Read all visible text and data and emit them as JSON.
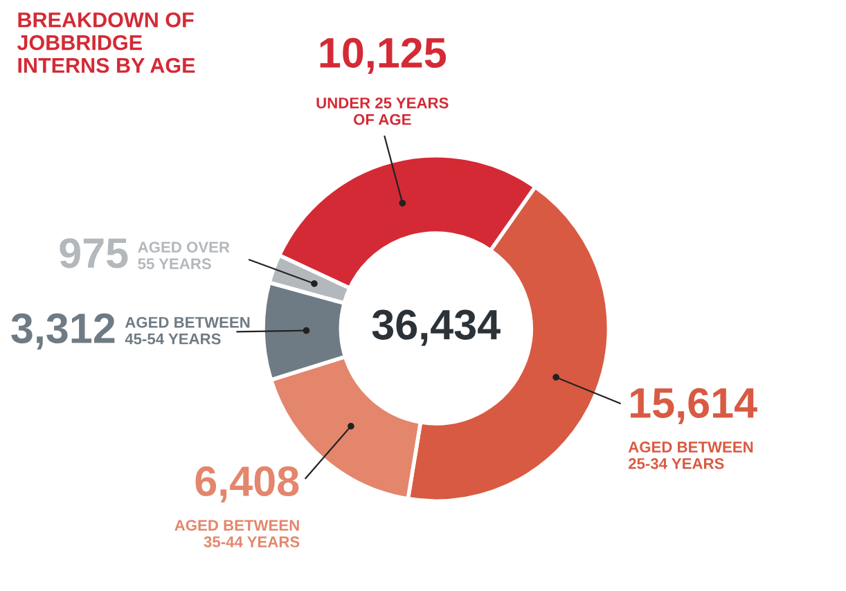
{
  "chart_data": {
    "type": "donut",
    "title": "BREAKDOWN OF\nJOBBRIDGE\nINTERNS BY AGE",
    "categories": [
      "UNDER 25 YEARS\nOF AGE",
      "AGED BETWEEN\n25-34 YEARS",
      "AGED BETWEEN\n35-44 YEARS",
      "AGED BETWEEN\n45-54 YEARS",
      "AGED OVER\n55 YEARS"
    ],
    "values": [
      10125,
      15614,
      6408,
      3312,
      975
    ],
    "value_labels": [
      "10,125",
      "15,614",
      "6,408",
      "3,312",
      "975"
    ],
    "colors": [
      "#d42a35",
      "#d95a42",
      "#e3866c",
      "#6f7b84",
      "#b3b8bc"
    ],
    "annotations": [
      "36,434"
    ],
    "legend": false
  }
}
